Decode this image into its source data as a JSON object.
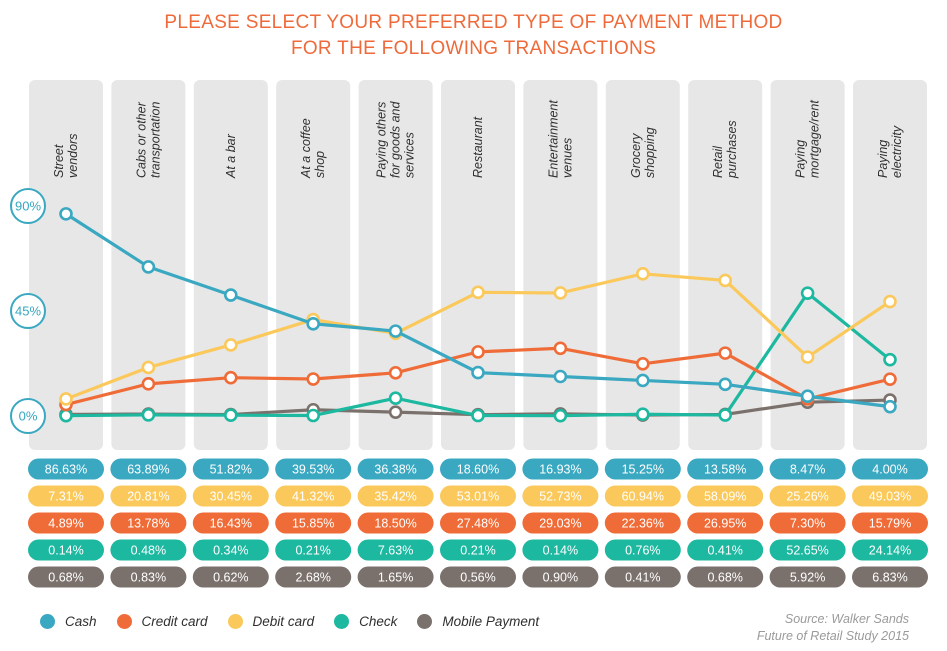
{
  "title_lines": [
    "PLEASE SELECT YOUR PREFERRED TYPE OF PAYMENT METHOD",
    "FOR THE FOLLOWING TRANSACTIONS"
  ],
  "source_lines": [
    "Source: Walker Sands",
    "Future of Retail Study 2015"
  ],
  "chart_data": {
    "type": "line",
    "title": "PLEASE SELECT YOUR PREFERRED TYPE OF PAYMENT METHOD FOR THE FOLLOWING TRANSACTIONS",
    "xlabel": "",
    "ylabel": "",
    "ylim": [
      0,
      90
    ],
    "yticks": [
      0,
      45,
      90
    ],
    "ytick_labels": [
      "0%",
      "45%",
      "90%"
    ],
    "legend_position": "bottom-left",
    "categories": [
      [
        "Street",
        "vendors"
      ],
      [
        "Cabs or other",
        "transportation"
      ],
      [
        "At a bar"
      ],
      [
        "At a coffee",
        "shop"
      ],
      [
        "Paying others",
        "for goods and",
        "services"
      ],
      [
        "Restaurant"
      ],
      [
        "Entertainment",
        "venues"
      ],
      [
        "Grocery",
        "shopping"
      ],
      [
        "Retail",
        "purchases"
      ],
      [
        "Paying",
        "mortgage/rent"
      ],
      [
        "Paying",
        "electricity"
      ]
    ],
    "series": [
      {
        "name": "Cash",
        "color": "#3aa8c1",
        "values": [
          86.63,
          63.89,
          51.82,
          39.53,
          36.38,
          18.6,
          16.93,
          15.25,
          13.58,
          8.47,
          4.0
        ],
        "labels": [
          "86.63%",
          "63.89%",
          "51.82%",
          "39.53%",
          "36.38%",
          "18.60%",
          "16.93%",
          "15.25%",
          "13.58%",
          "8.47%",
          "4.00%"
        ]
      },
      {
        "name": "Debit card",
        "color": "#fbc95b",
        "values": [
          7.31,
          20.81,
          30.45,
          41.32,
          35.42,
          53.01,
          52.73,
          60.94,
          58.09,
          25.26,
          49.03
        ],
        "labels": [
          "7.31%",
          "20.81%",
          "30.45%",
          "41.32%",
          "35.42%",
          "53.01%",
          "52.73%",
          "60.94%",
          "58.09%",
          "25.26%",
          "49.03%"
        ]
      },
      {
        "name": "Credit card",
        "color": "#ef6c38",
        "values": [
          4.89,
          13.78,
          16.43,
          15.85,
          18.5,
          27.48,
          29.03,
          22.36,
          26.95,
          7.3,
          15.79
        ],
        "labels": [
          "4.89%",
          "13.78%",
          "16.43%",
          "15.85%",
          "18.50%",
          "27.48%",
          "29.03%",
          "22.36%",
          "26.95%",
          "7.30%",
          "15.79%"
        ]
      },
      {
        "name": "Check",
        "color": "#1db8a0",
        "values": [
          0.14,
          0.48,
          0.34,
          0.21,
          7.63,
          0.21,
          0.14,
          0.76,
          0.41,
          52.65,
          24.14
        ],
        "labels": [
          "0.14%",
          "0.48%",
          "0.34%",
          "0.21%",
          "7.63%",
          "0.21%",
          "0.14%",
          "0.76%",
          "0.41%",
          "52.65%",
          "24.14%"
        ]
      },
      {
        "name": "Mobile Payment",
        "color": "#7b716c",
        "values": [
          0.68,
          0.83,
          0.62,
          2.68,
          1.65,
          0.56,
          0.9,
          0.41,
          0.68,
          5.92,
          6.83
        ],
        "labels": [
          "0.68%",
          "0.83%",
          "0.62%",
          "2.68%",
          "1.65%",
          "0.56%",
          "0.90%",
          "0.41%",
          "0.68%",
          "5.92%",
          "6.83%"
        ]
      }
    ],
    "legend_order": [
      "Cash",
      "Credit card",
      "Debit card",
      "Check",
      "Mobile Payment"
    ]
  }
}
